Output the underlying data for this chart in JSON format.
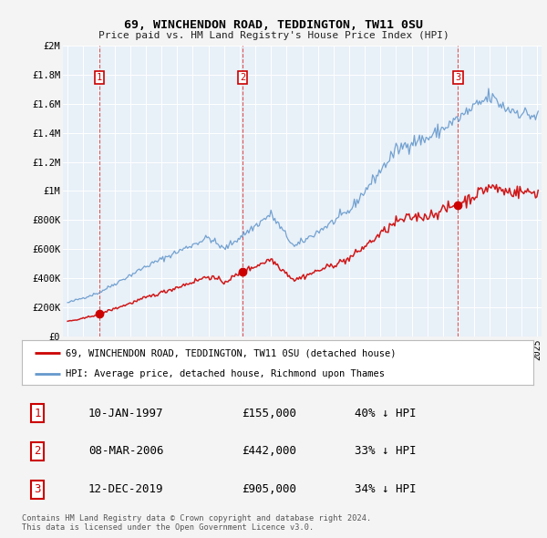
{
  "title": "69, WINCHENDON ROAD, TEDDINGTON, TW11 0SU",
  "subtitle": "Price paid vs. HM Land Registry's House Price Index (HPI)",
  "background_color": "#f4f4f4",
  "plot_bg_color": "#e8f0f8",
  "sale_color": "#cc0000",
  "hpi_color": "#6699cc",
  "legend_sale": "69, WINCHENDON ROAD, TEDDINGTON, TW11 0SU (detached house)",
  "legend_hpi": "HPI: Average price, detached house, Richmond upon Thames",
  "table": [
    {
      "num": "1",
      "date": "10-JAN-1997",
      "price": "£155,000",
      "hpi": "40% ↓ HPI"
    },
    {
      "num": "2",
      "date": "08-MAR-2006",
      "price": "£442,000",
      "hpi": "33% ↓ HPI"
    },
    {
      "num": "3",
      "date": "12-DEC-2019",
      "price": "£905,000",
      "hpi": "34% ↓ HPI"
    }
  ],
  "footnote": "Contains HM Land Registry data © Crown copyright and database right 2024.\nThis data is licensed under the Open Government Licence v3.0.",
  "ylim": [
    0,
    2000000
  ],
  "yticks": [
    0,
    200000,
    400000,
    600000,
    800000,
    1000000,
    1200000,
    1400000,
    1600000,
    1800000,
    2000000
  ],
  "ytick_labels": [
    "£0",
    "£200K",
    "£400K",
    "£600K",
    "£800K",
    "£1M",
    "£1.2M",
    "£1.4M",
    "£1.6M",
    "£1.8M",
    "£2M"
  ],
  "xlim_start": 1994.7,
  "xlim_end": 2025.3,
  "sale_event_years": [
    1997.03,
    2006.18,
    2019.95
  ],
  "sale_event_prices": [
    155000,
    442000,
    905000
  ],
  "sale_labels": [
    "1",
    "2",
    "3"
  ]
}
